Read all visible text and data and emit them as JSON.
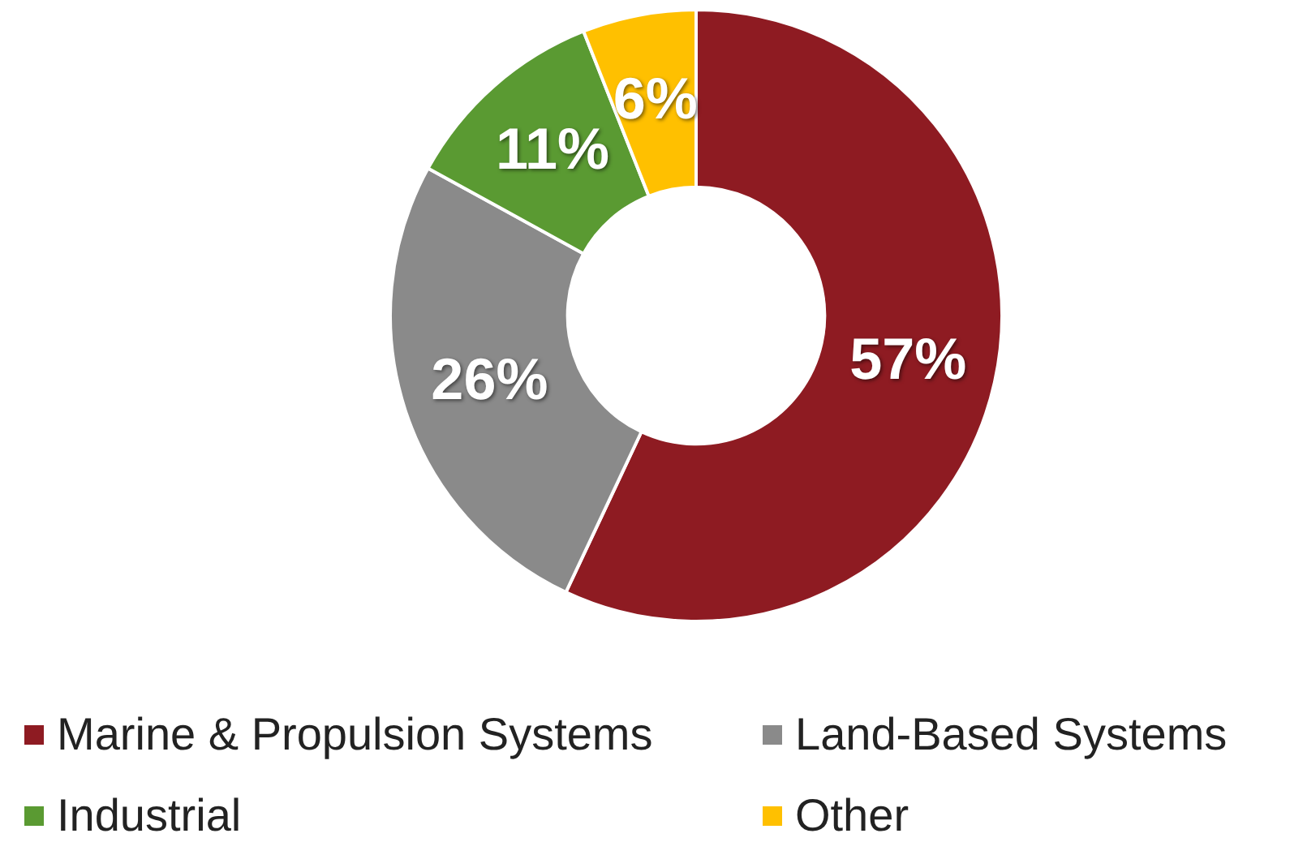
{
  "chart_data": {
    "type": "donut",
    "categories": [
      "Marine & Propulsion Systems",
      "Land-Based Systems",
      "Industrial",
      "Other"
    ],
    "values": [
      57,
      26,
      11,
      6
    ],
    "colors": [
      "#8e1b22",
      "#8a8a8a",
      "#5a9a32",
      "#ffc000"
    ],
    "value_labels": [
      "57%",
      "26%",
      "11%",
      "6%"
    ],
    "legend": "bottom"
  }
}
